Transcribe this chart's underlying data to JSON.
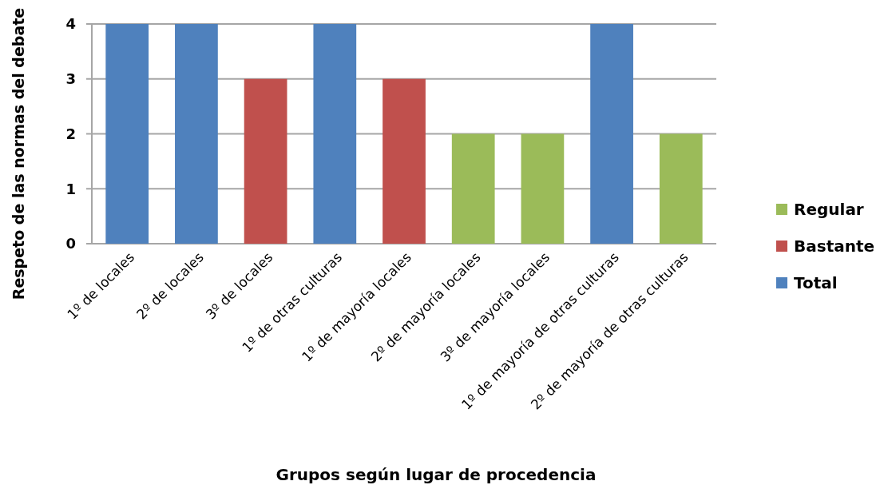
{
  "chart_data": {
    "type": "bar",
    "xlabel": "Grupos según lugar de procedencia",
    "ylabel": "Respeto de las normas del debate",
    "categories": [
      "1º de locales",
      "2º de locales",
      "3º de locales",
      "1º de otras culturas",
      "1º de mayoría locales",
      "2º de mayoría locales",
      "3º de mayoría locales",
      "1º de mayoría de otras culturas",
      "2º de mayoría de otras culturas"
    ],
    "series": [
      {
        "name": "Regular",
        "color": "#9bbb59",
        "values": [
          null,
          null,
          null,
          null,
          null,
          2,
          2,
          null,
          2
        ]
      },
      {
        "name": "Bastante",
        "color": "#c0504d",
        "values": [
          null,
          null,
          3,
          null,
          3,
          null,
          null,
          null,
          null
        ]
      },
      {
        "name": "Total",
        "color": "#4f81bd",
        "values": [
          4,
          4,
          null,
          4,
          null,
          null,
          null,
          4,
          null
        ]
      }
    ],
    "stacked": true,
    "ylim": [
      0,
      4
    ],
    "yticks": [
      0,
      1,
      2,
      3,
      4
    ],
    "grid": "y",
    "legend": "right"
  }
}
